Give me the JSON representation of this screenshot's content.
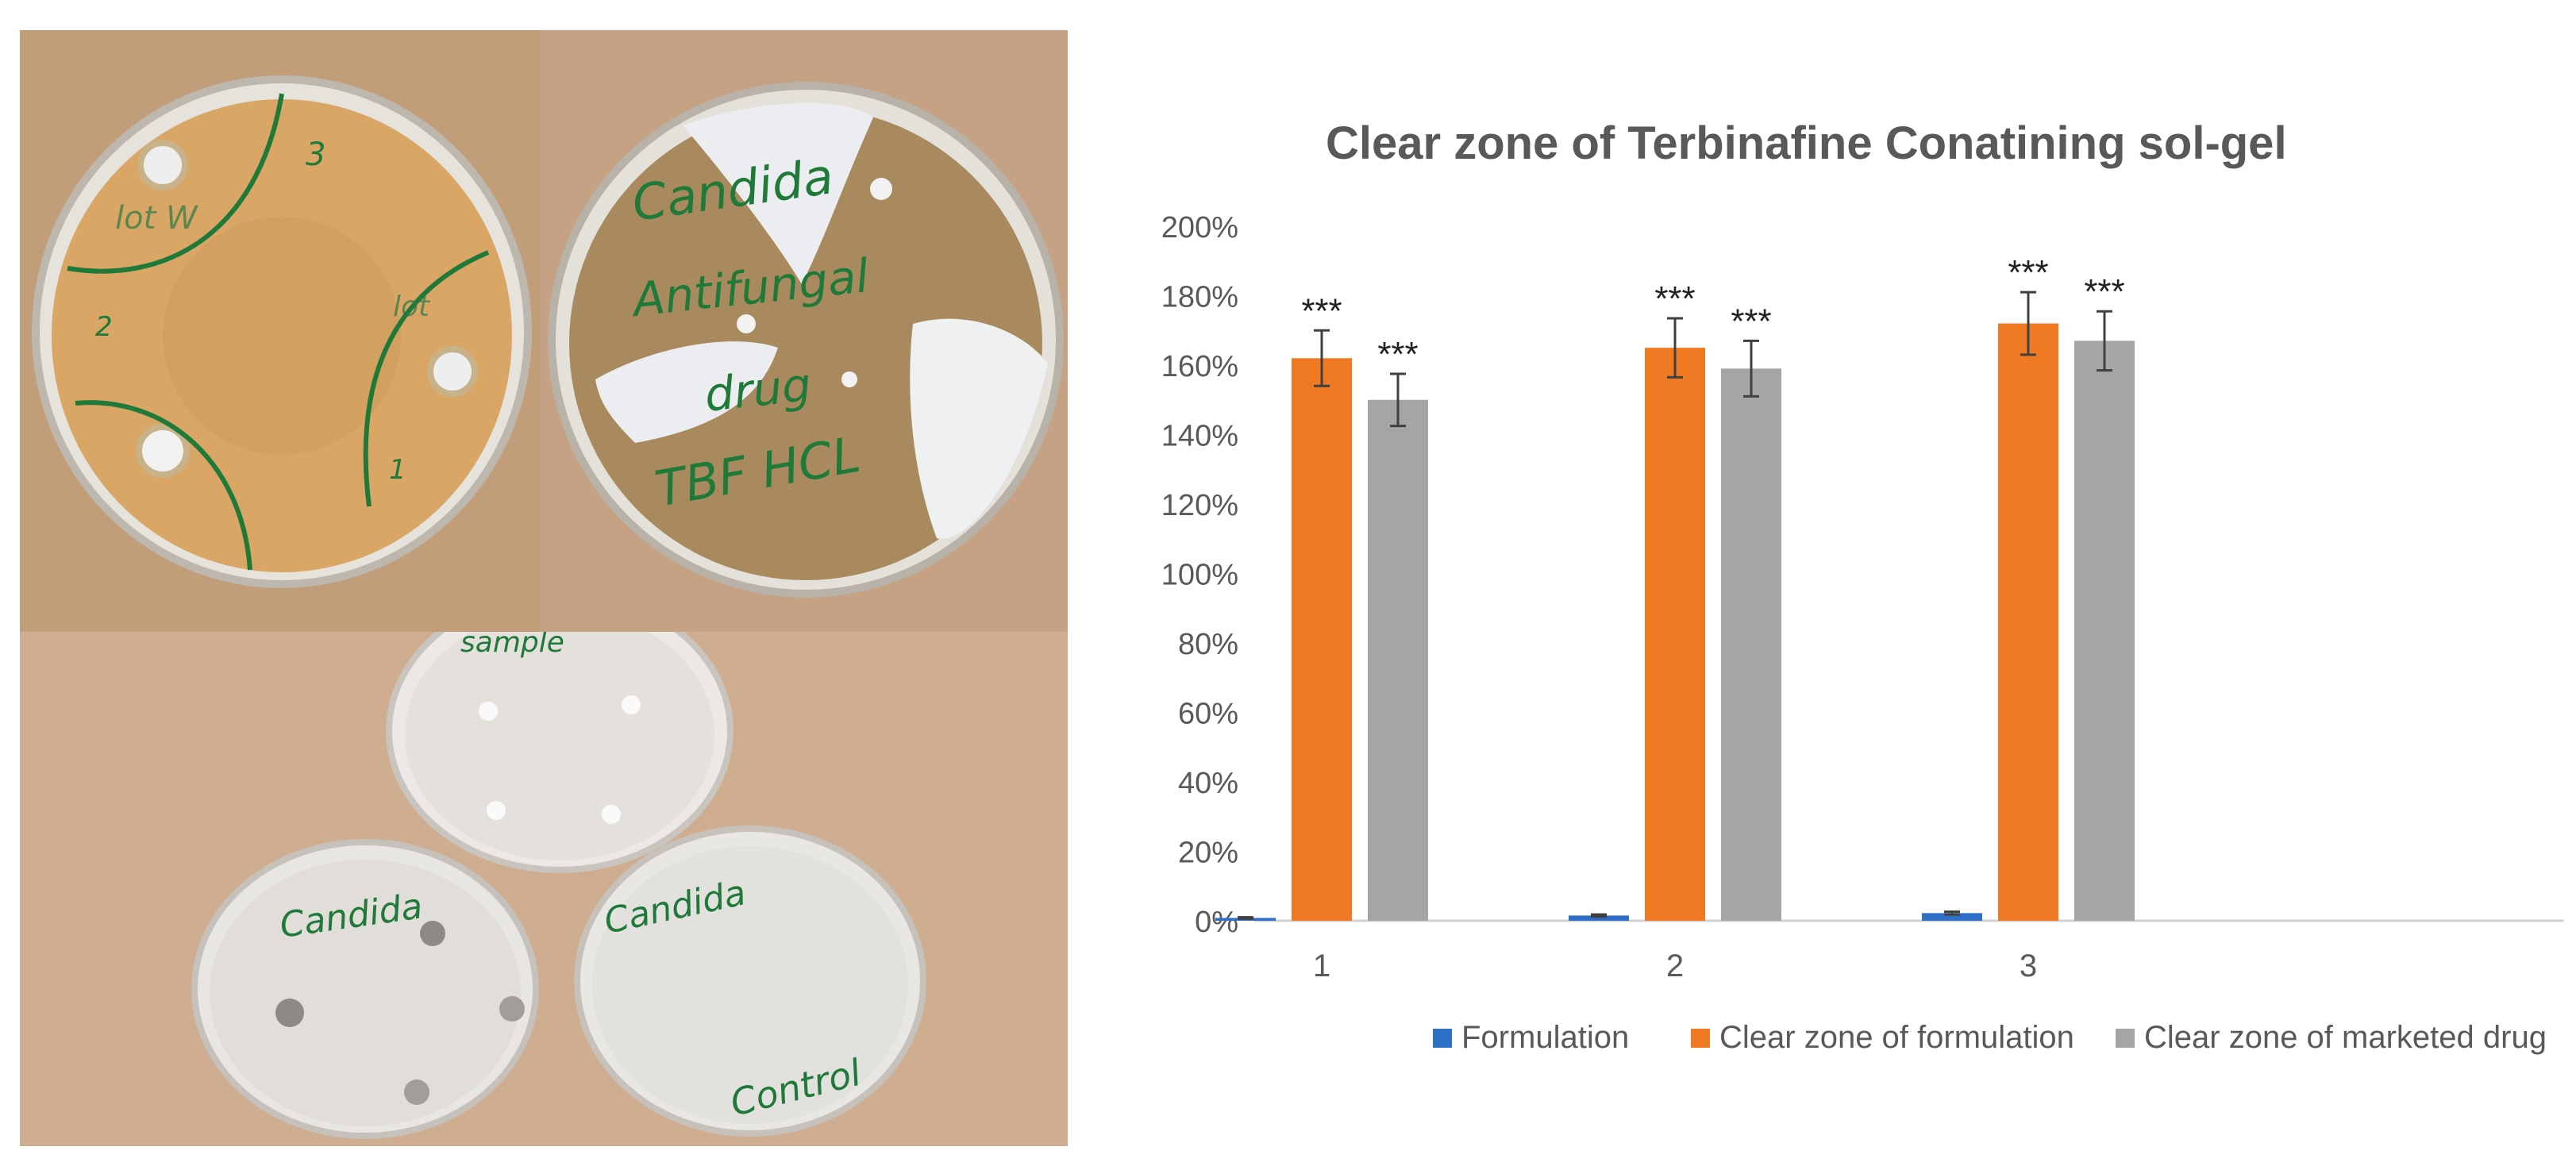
{
  "photos": {
    "top_left": {
      "labels": [
        "3",
        "2",
        "1",
        "lot W",
        "lot"
      ]
    },
    "top_right": {
      "labels": [
        "Candida",
        "Antifungal",
        "drug",
        "TBF HCL"
      ]
    },
    "bottom": {
      "labels": [
        "sample",
        "Candida",
        "Candida",
        "Control"
      ]
    }
  },
  "chart_data": {
    "type": "bar",
    "title": "Clear zone of Terbinafine Conatining sol-gel",
    "categories": [
      "1",
      "2",
      "3"
    ],
    "series": [
      {
        "name": "Formulation",
        "values": [
          0.008,
          0.015,
          0.022
        ],
        "errors": [
          0.002,
          0.003,
          0.004
        ],
        "color": "#2e6fc8",
        "stars": [
          "",
          "",
          ""
        ]
      },
      {
        "name": "Clear zone of formulation",
        "values": [
          1.62,
          1.65,
          1.72
        ],
        "errors": [
          0.08,
          0.085,
          0.09
        ],
        "color": "#f07a24",
        "stars": [
          "***",
          "***",
          "***"
        ]
      },
      {
        "name": "Clear zone of marketed drug",
        "values": [
          1.5,
          1.59,
          1.67
        ],
        "errors": [
          0.075,
          0.08,
          0.085
        ],
        "color": "#a5a5a5",
        "stars": [
          "***",
          "***",
          "***"
        ]
      }
    ],
    "yticks": [
      "0%",
      "20%",
      "40%",
      "60%",
      "80%",
      "100%",
      "120%",
      "140%",
      "160%",
      "180%",
      "200%"
    ],
    "ylim": [
      0,
      2.0
    ],
    "grid": false,
    "legend_position": "bottom"
  }
}
